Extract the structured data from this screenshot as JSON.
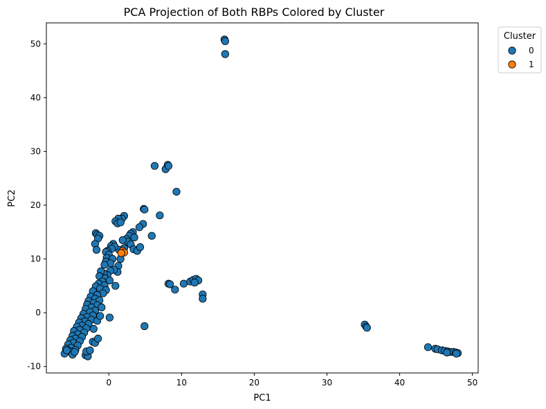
{
  "chart_data": {
    "type": "scatter",
    "title": "PCA Projection of Both RBPs Colored by Cluster",
    "xlabel": "PC1",
    "ylabel": "PC2",
    "xlim": [
      -8.6,
      50.8
    ],
    "ylim": [
      -11.2,
      53.9
    ],
    "xticks": [
      0,
      10,
      20,
      30,
      40,
      50
    ],
    "yticks": [
      -10,
      0,
      10,
      20,
      30,
      40,
      50
    ],
    "grid": false,
    "legend": {
      "title": "Cluster",
      "position": "outside-top-right"
    },
    "marker_edge_color": "#000000",
    "series": [
      {
        "name": "0",
        "color": "#1f77b4",
        "points": [
          [
            15.9,
            50.8
          ],
          [
            16.0,
            50.5
          ],
          [
            16.0,
            48.1
          ],
          [
            6.3,
            27.3
          ],
          [
            7.8,
            26.7
          ],
          [
            8.1,
            27.5
          ],
          [
            8.2,
            27.3
          ],
          [
            9.3,
            22.5
          ],
          [
            4.8,
            19.3
          ],
          [
            4.9,
            19.2
          ],
          [
            7.0,
            18.1
          ],
          [
            2.1,
            18.0
          ],
          [
            1.8,
            17.5
          ],
          [
            1.3,
            17.5
          ],
          [
            0.9,
            17.0
          ],
          [
            1.2,
            16.6
          ],
          [
            1.6,
            16.8
          ],
          [
            4.7,
            16.5
          ],
          [
            4.2,
            15.9
          ],
          [
            5.9,
            14.3
          ],
          [
            3.3,
            15.0
          ],
          [
            3.0,
            14.7
          ],
          [
            2.8,
            14.3
          ],
          [
            3.5,
            14.0
          ],
          [
            2.4,
            13.7
          ],
          [
            2.6,
            13.2
          ],
          [
            1.9,
            13.5
          ],
          [
            3.0,
            12.7
          ],
          [
            3.4,
            11.8
          ],
          [
            3.9,
            11.5
          ],
          [
            4.3,
            12.2
          ],
          [
            2.1,
            12.0
          ],
          [
            1.4,
            11.7
          ],
          [
            1.6,
            10.0
          ],
          [
            -1.8,
            14.8
          ],
          [
            -1.6,
            14.5
          ],
          [
            -1.3,
            14.3
          ],
          [
            -1.5,
            13.8
          ],
          [
            -1.9,
            12.8
          ],
          [
            -1.7,
            11.7
          ],
          [
            0.6,
            12.8
          ],
          [
            0.3,
            12.4
          ],
          [
            0.8,
            12.3
          ],
          [
            0.4,
            11.9
          ],
          [
            -0.2,
            11.5
          ],
          [
            -0.4,
            11.3
          ],
          [
            0.0,
            10.8
          ],
          [
            -0.3,
            10.2
          ],
          [
            0.5,
            10.0
          ],
          [
            -0.4,
            9.5
          ],
          [
            0.2,
            9.2
          ],
          [
            -0.6,
            8.9
          ],
          [
            1.3,
            8.7
          ],
          [
            1.2,
            7.6
          ],
          [
            0.7,
            8.0
          ],
          [
            0.2,
            7.8
          ],
          [
            -0.2,
            7.0
          ],
          [
            -0.7,
            7.3
          ],
          [
            -1.1,
            7.7
          ],
          [
            -1.3,
            6.8
          ],
          [
            -0.5,
            6.4
          ],
          [
            0.1,
            6.0
          ],
          [
            -0.9,
            5.8
          ],
          [
            -1.4,
            5.4
          ],
          [
            -0.6,
            5.1
          ],
          [
            0.9,
            5.0
          ],
          [
            -1.8,
            4.9
          ],
          [
            -1.2,
            4.5
          ],
          [
            -0.4,
            4.2
          ],
          [
            -2.2,
            4.0
          ],
          [
            -0.8,
            3.6
          ],
          [
            -1.6,
            3.3
          ],
          [
            -2.5,
            3.0
          ],
          [
            -1.9,
            2.6
          ],
          [
            -1.3,
            2.3
          ],
          [
            -2.8,
            2.2
          ],
          [
            -2.1,
            1.8
          ],
          [
            -3.0,
            1.5
          ],
          [
            -1.6,
            1.4
          ],
          [
            -2.4,
            1.0
          ],
          [
            -3.2,
            0.7
          ],
          [
            -1.9,
            0.4
          ],
          [
            -2.6,
            0.1
          ],
          [
            -3.5,
            -0.2
          ],
          [
            -2.2,
            -0.5
          ],
          [
            -3.0,
            -0.8
          ],
          [
            -3.8,
            -1.0
          ],
          [
            -2.4,
            -1.3
          ],
          [
            -3.3,
            -1.6
          ],
          [
            -4.1,
            -1.8
          ],
          [
            -2.8,
            -2.1
          ],
          [
            -3.7,
            -2.4
          ],
          [
            -4.4,
            -2.6
          ],
          [
            -3.1,
            -2.9
          ],
          [
            -4.0,
            -3.2
          ],
          [
            -4.8,
            -3.4
          ],
          [
            -3.4,
            -3.7
          ],
          [
            -4.3,
            -4.0
          ],
          [
            -5.0,
            -4.3
          ],
          [
            -3.7,
            -4.5
          ],
          [
            -4.6,
            -4.8
          ],
          [
            -5.3,
            -5.1
          ],
          [
            -4.0,
            -5.3
          ],
          [
            -4.9,
            -5.6
          ],
          [
            -5.6,
            -5.9
          ],
          [
            -4.3,
            -6.1
          ],
          [
            -5.2,
            -6.5
          ],
          [
            -5.9,
            -6.7
          ],
          [
            -4.6,
            -6.9
          ],
          [
            -5.4,
            -7.2
          ],
          [
            -6.1,
            -7.6
          ],
          [
            -5.0,
            -7.8
          ],
          [
            -4.7,
            -7.3
          ],
          [
            -5.8,
            -7.0
          ],
          [
            -3.2,
            -7.9
          ],
          [
            -2.9,
            -8.1
          ],
          [
            -3.1,
            -7.2
          ],
          [
            -2.6,
            -7.0
          ],
          [
            -2.2,
            -5.4
          ],
          [
            -1.9,
            -5.6
          ],
          [
            -1.5,
            -4.8
          ],
          [
            -2.1,
            -3.0
          ],
          [
            -1.6,
            -1.5
          ],
          [
            -1.2,
            -0.6
          ],
          [
            -1.0,
            1.0
          ],
          [
            0.1,
            -0.9
          ],
          [
            4.9,
            -2.5
          ],
          [
            8.2,
            5.4
          ],
          [
            8.4,
            5.3
          ],
          [
            9.1,
            4.3
          ],
          [
            10.3,
            5.4
          ],
          [
            11.2,
            5.8
          ],
          [
            11.6,
            6.1
          ],
          [
            12.0,
            6.3
          ],
          [
            12.3,
            6.0
          ],
          [
            11.8,
            5.6
          ],
          [
            12.9,
            3.4
          ],
          [
            12.9,
            2.6
          ],
          [
            35.2,
            -2.2
          ],
          [
            35.4,
            -2.6
          ],
          [
            35.5,
            -2.8
          ],
          [
            43.9,
            -6.4
          ],
          [
            44.9,
            -6.7
          ],
          [
            45.2,
            -6.8
          ],
          [
            45.8,
            -7.0
          ],
          [
            46.2,
            -7.1
          ],
          [
            46.6,
            -7.2
          ],
          [
            47.0,
            -7.3
          ],
          [
            47.4,
            -7.3
          ],
          [
            47.7,
            -7.4
          ],
          [
            48.0,
            -7.5
          ],
          [
            46.5,
            -7.4
          ],
          [
            47.8,
            -7.6
          ]
        ]
      },
      {
        "name": "1",
        "color": "#ff7f0e",
        "points": [
          [
            1.9,
            11.5
          ],
          [
            2.1,
            11.2
          ],
          [
            1.7,
            11.1
          ]
        ]
      }
    ]
  }
}
